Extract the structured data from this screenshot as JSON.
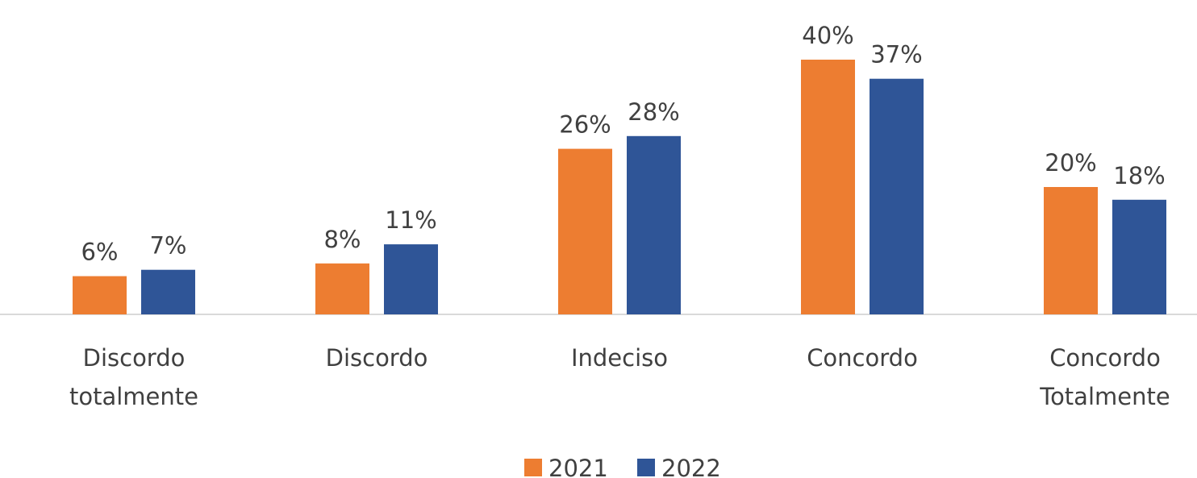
{
  "chart_data": {
    "type": "bar",
    "categories": [
      "Discordo totalmente",
      "Discordo",
      "Indeciso",
      "Concordo",
      "Concordo Totalmente"
    ],
    "series": [
      {
        "name": "2021",
        "color": "#ED7D31",
        "values": [
          6,
          8,
          26,
          40,
          20
        ],
        "value_labels": [
          "6%",
          "8%",
          "26%",
          "40%",
          "20%"
        ]
      },
      {
        "name": "2022",
        "color": "#2F5597",
        "values": [
          7,
          11,
          28,
          37,
          18
        ],
        "value_labels": [
          "7%",
          "11%",
          "28%",
          "37%",
          "18%"
        ]
      }
    ],
    "legend": "bottom"
  }
}
